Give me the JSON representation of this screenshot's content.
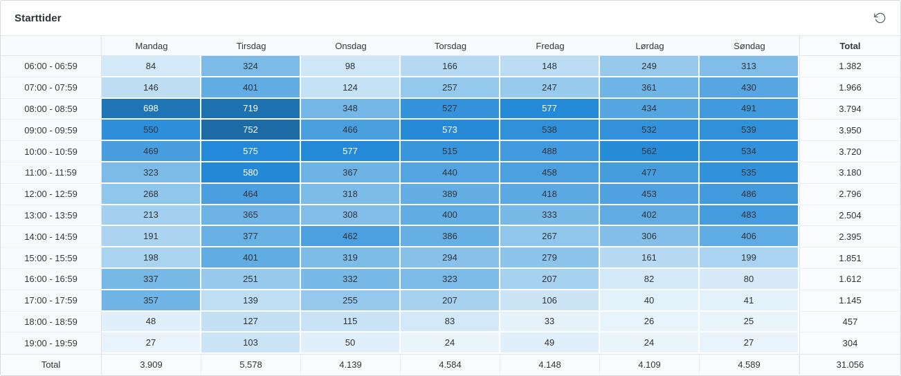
{
  "card": {
    "title": "Starttider"
  },
  "toolbar": {
    "reset_icon": "rotate-ccw-icon"
  },
  "chart_data": {
    "type": "heatmap",
    "title": "Starttider",
    "x_categories": [
      "Mandag",
      "Tirsdag",
      "Onsdag",
      "Torsdag",
      "Fredag",
      "Lørdag",
      "Søndag"
    ],
    "y_categories": [
      "06:00 - 06:59",
      "07:00 - 07:59",
      "08:00 - 08:59",
      "09:00 - 09:59",
      "10:00 - 10:59",
      "11:00 - 11:59",
      "12:00 - 12:59",
      "13:00 - 13:59",
      "14:00 - 14:59",
      "15:00 - 15:59",
      "16:00 - 16:59",
      "17:00 - 17:59",
      "18:00 - 18:59",
      "19:00 - 19:59"
    ],
    "values": [
      [
        84,
        324,
        98,
        166,
        148,
        249,
        313
      ],
      [
        146,
        401,
        124,
        257,
        247,
        361,
        430
      ],
      [
        698,
        719,
        348,
        527,
        577,
        434,
        491
      ],
      [
        550,
        752,
        466,
        573,
        538,
        532,
        539
      ],
      [
        469,
        575,
        577,
        515,
        488,
        562,
        534
      ],
      [
        323,
        580,
        367,
        440,
        458,
        477,
        535
      ],
      [
        268,
        464,
        318,
        389,
        418,
        453,
        486
      ],
      [
        213,
        365,
        308,
        400,
        333,
        402,
        483
      ],
      [
        191,
        377,
        462,
        386,
        267,
        306,
        406
      ],
      [
        198,
        401,
        319,
        294,
        279,
        161,
        199
      ],
      [
        337,
        251,
        332,
        323,
        207,
        82,
        80
      ],
      [
        357,
        139,
        255,
        207,
        106,
        40,
        41
      ],
      [
        48,
        127,
        115,
        83,
        33,
        26,
        25
      ],
      [
        27,
        103,
        50,
        24,
        49,
        24,
        27
      ]
    ],
    "row_totals": [
      "1.382",
      "1.966",
      "3.794",
      "3.950",
      "3.720",
      "3.180",
      "2.796",
      "2.504",
      "2.395",
      "1.851",
      "1.612",
      "1.145",
      "457",
      "304"
    ],
    "column_totals": [
      "3.909",
      "5.578",
      "4.139",
      "4.584",
      "4.148",
      "4.109",
      "4.589"
    ],
    "grand_total": "31.056",
    "total_label": "Total",
    "legend": "none",
    "color_scale": {
      "min": 24,
      "max": 752,
      "stops": [
        {
          "t": 0,
          "color": "#e9f4fb"
        },
        {
          "t": 0.412,
          "color": "#7cbbe8"
        },
        {
          "t": 0.757,
          "color": "#2489d8"
        },
        {
          "t": 1,
          "color": "#1c6ba6"
        }
      ],
      "white_text_min": 570,
      "dark_text_color": "#2e3338",
      "light_text_color": "#ffffff"
    }
  }
}
